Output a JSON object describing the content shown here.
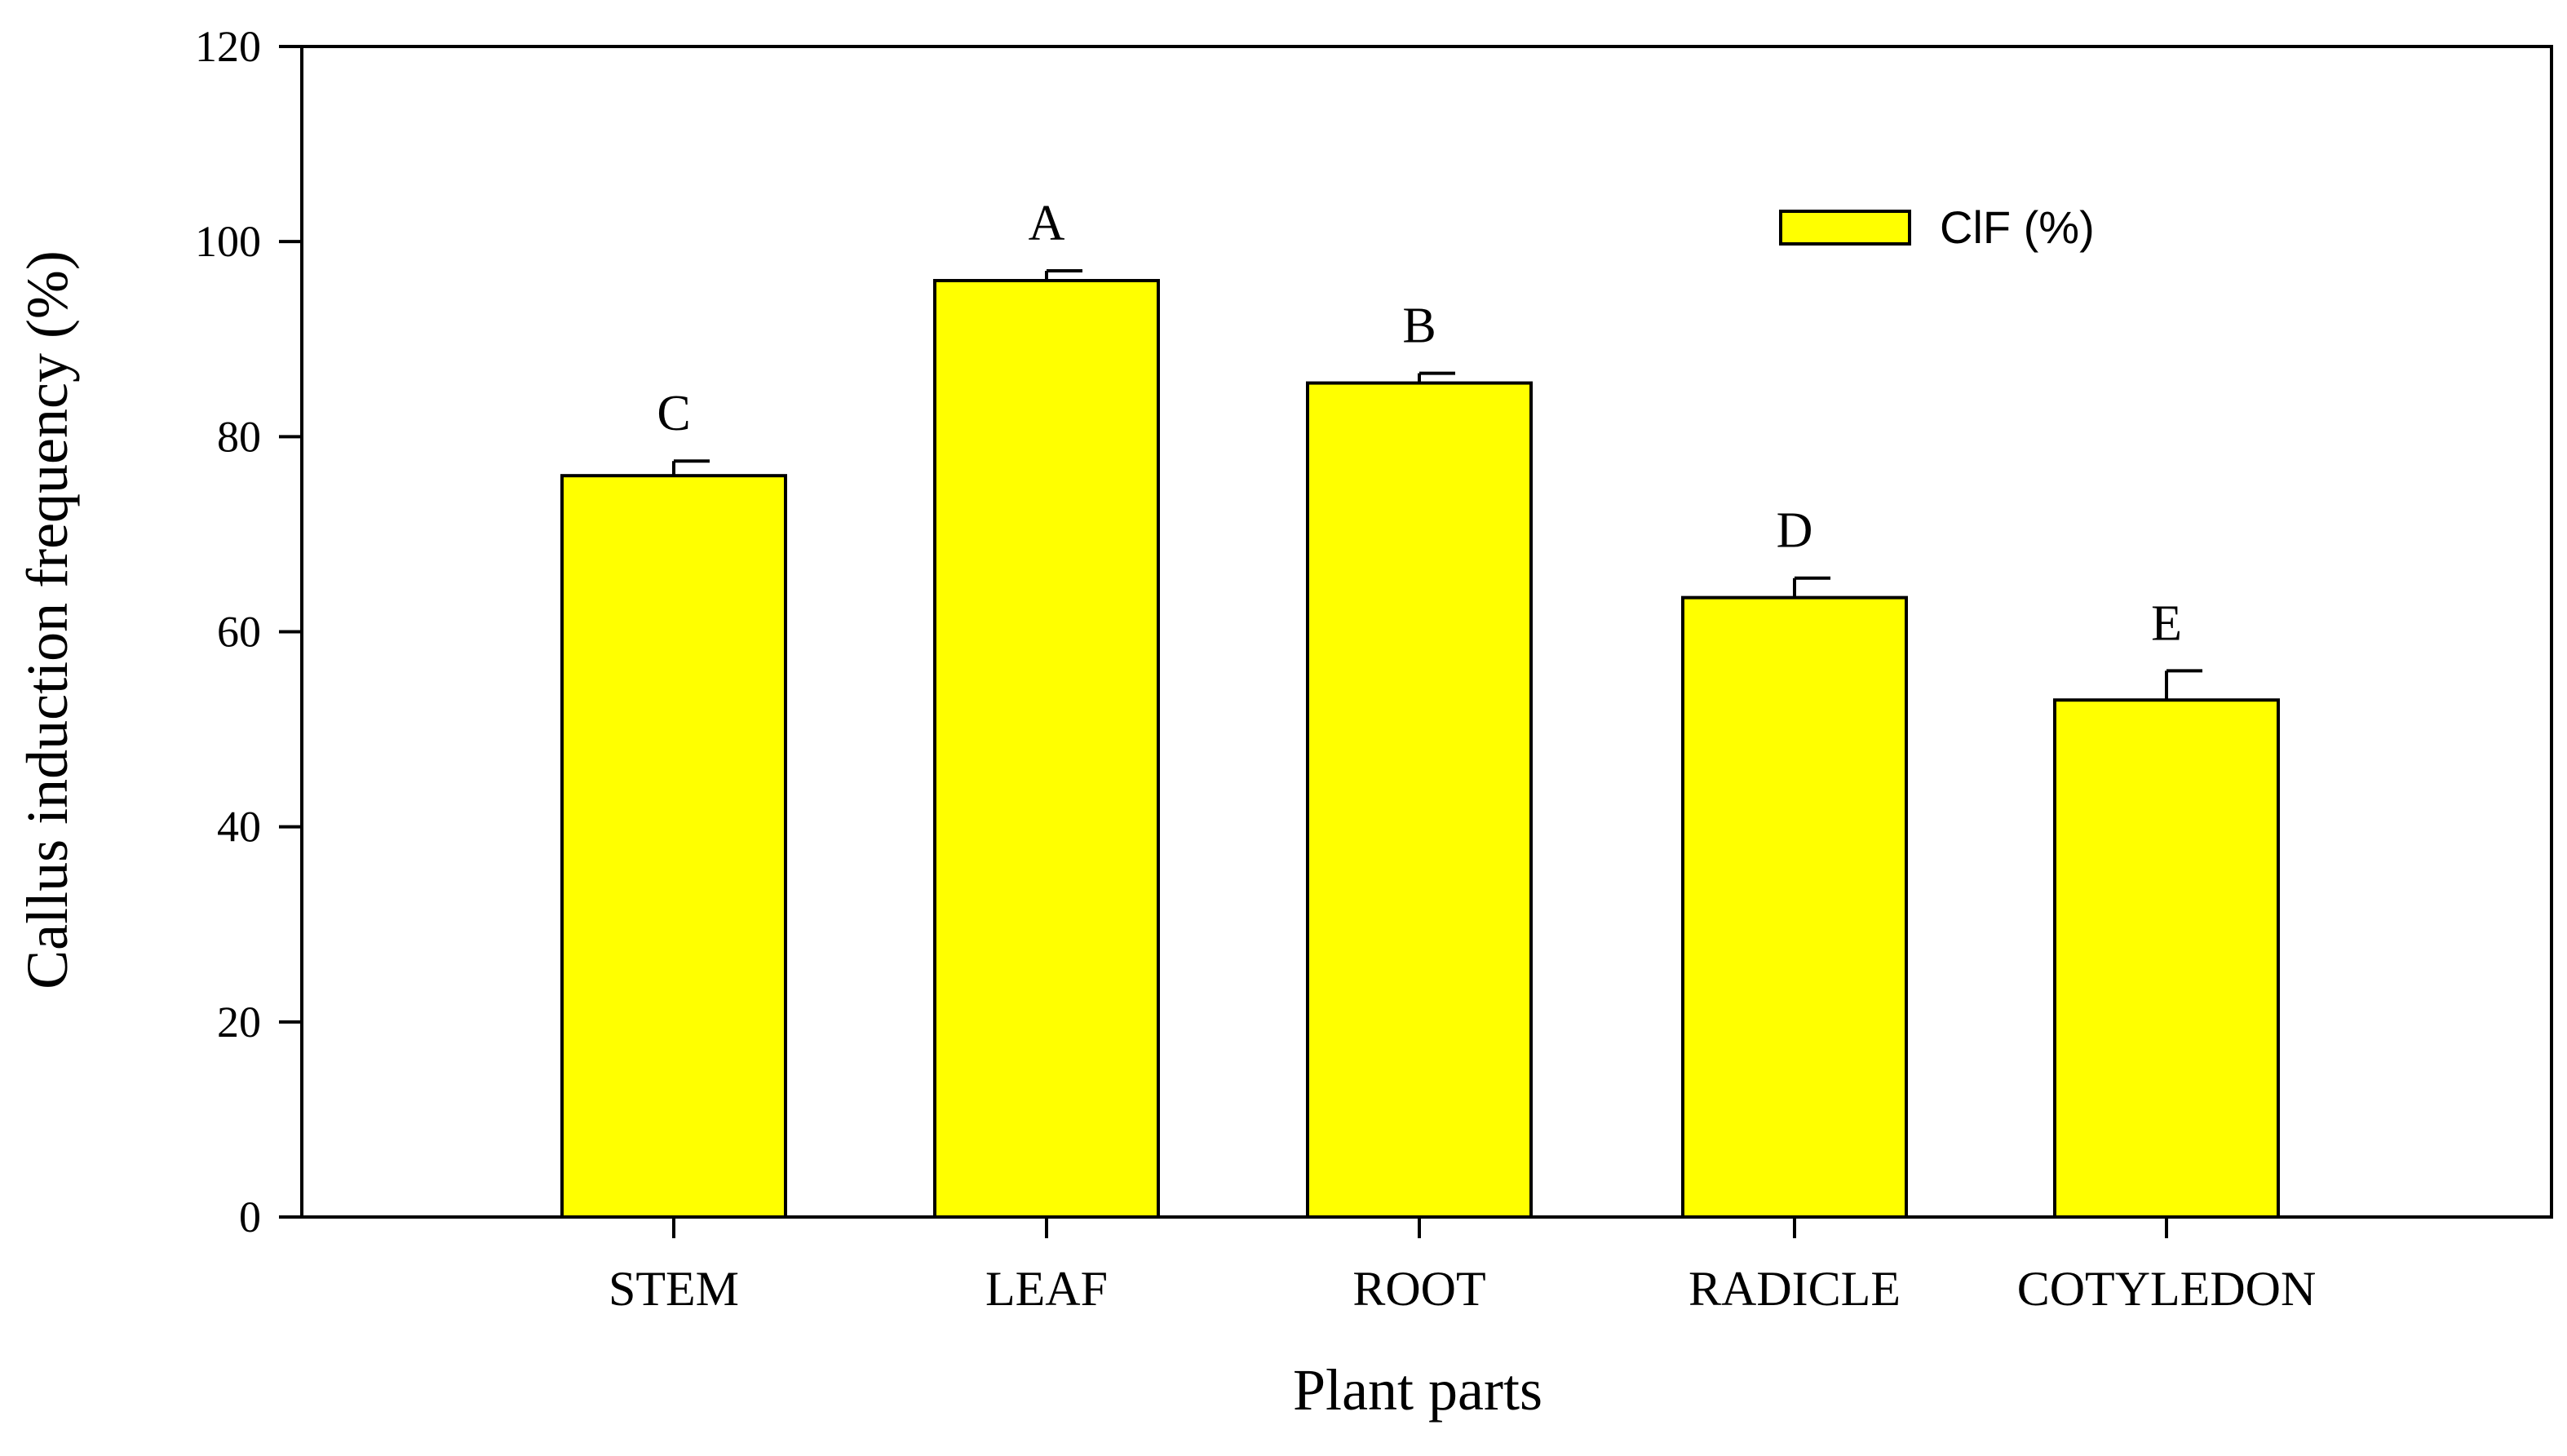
{
  "chart_data": {
    "type": "bar",
    "categories": [
      "STEM",
      "LEAF",
      "ROOT",
      "RADICLE",
      "COTYLEDON"
    ],
    "series": [
      {
        "name": "ClF (%)",
        "values": [
          76,
          96,
          85.5,
          63.5,
          53
        ],
        "errors": [
          1.5,
          1,
          1,
          2,
          3
        ],
        "significance": [
          "C",
          "A",
          "B",
          "D",
          "E"
        ]
      }
    ],
    "xlabel": "Plant parts",
    "ylabel": "Callus induction frequency (%)",
    "ylim": [
      0,
      120
    ],
    "yticks": [
      0,
      20,
      40,
      60,
      80,
      100,
      120
    ],
    "grid": false,
    "legend_position": "top-right",
    "bar_color": "#ffff00"
  }
}
